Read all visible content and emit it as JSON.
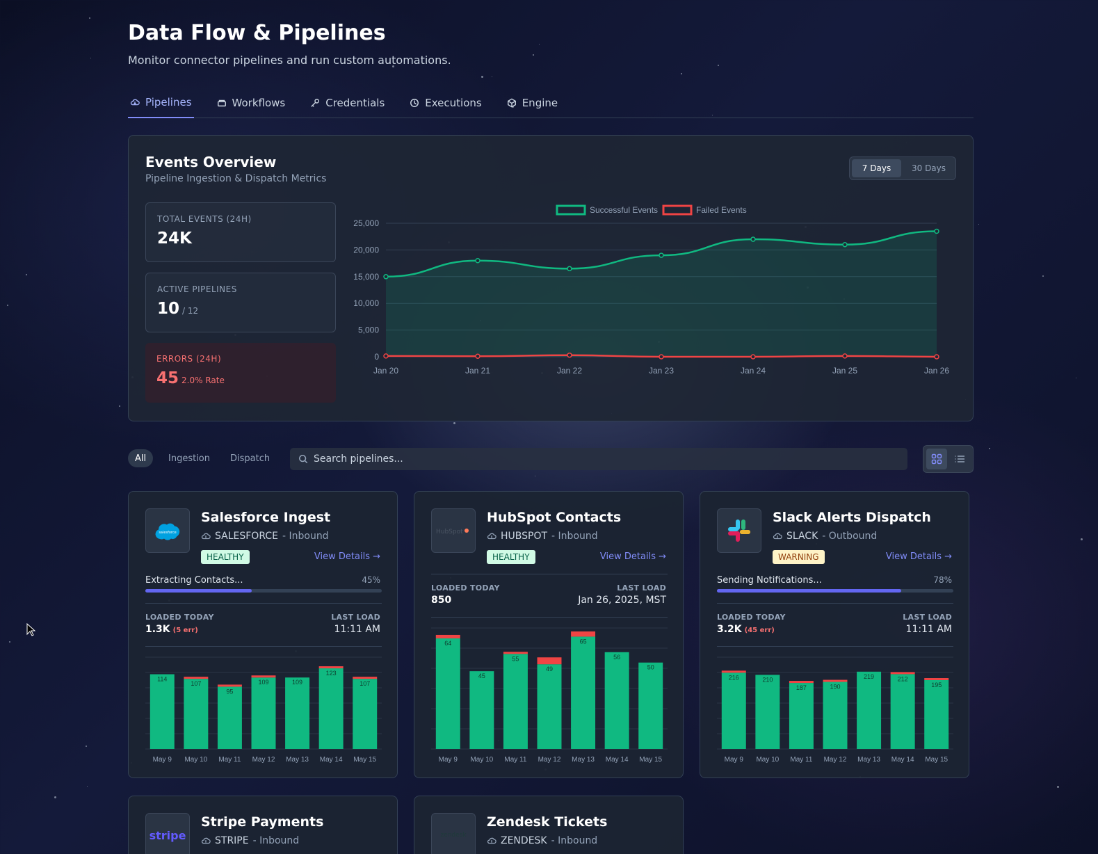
{
  "page": {
    "title": "Data Flow & Pipelines",
    "subtitle": "Monitor connector pipelines and run custom automations."
  },
  "tabs": [
    {
      "label": "Pipelines",
      "icon": "cloud-icon",
      "active": true
    },
    {
      "label": "Workflows",
      "icon": "layers-icon",
      "active": false
    },
    {
      "label": "Credentials",
      "icon": "key-icon",
      "active": false
    },
    {
      "label": "Executions",
      "icon": "clock-icon",
      "active": false
    },
    {
      "label": "Engine",
      "icon": "cube-icon",
      "active": false
    }
  ],
  "overview": {
    "title": "Events Overview",
    "subtitle": "Pipeline Ingestion & Dispatch Metrics",
    "range_options": [
      "7 Days",
      "30 Days"
    ],
    "range_selected": "7 Days",
    "stats": {
      "total": {
        "label": "TOTAL EVENTS (24H)",
        "value": "24K"
      },
      "active": {
        "label": "ACTIVE PIPELINES",
        "value": "10",
        "suffix": "/ 12"
      },
      "errors": {
        "label": "ERRORS (24H)",
        "value": "45",
        "suffix": "2.0% Rate"
      }
    }
  },
  "chart_data": [
    {
      "type": "area",
      "x": [
        "Jan 20",
        "Jan 21",
        "Jan 22",
        "Jan 23",
        "Jan 24",
        "Jan 25",
        "Jan 26"
      ],
      "series": [
        {
          "name": "Successful Events",
          "values": [
            15000,
            18000,
            16500,
            19000,
            22000,
            21000,
            23500
          ],
          "color": "#10b981"
        },
        {
          "name": "Failed Events",
          "values": [
            150,
            100,
            300,
            0,
            0,
            150,
            0
          ],
          "color": "#ef4444"
        }
      ],
      "ylim": [
        0,
        25000
      ],
      "yticks": [
        "0",
        "5,000",
        "10,000",
        "15,000",
        "20,000",
        "25,000"
      ],
      "legend": "top-center",
      "grid": true
    },
    {
      "type": "bar",
      "categories": [
        "May 9",
        "May 10",
        "May 11",
        "May 12",
        "May 13",
        "May 14",
        "May 15"
      ],
      "series": [
        {
          "values": [
            114,
            107,
            95,
            109,
            109,
            123,
            107
          ],
          "color": "#10b981"
        },
        {
          "values": [
            0,
            2,
            3,
            1,
            0,
            2,
            1
          ],
          "color": "#ef4444"
        }
      ],
      "ylim": [
        0,
        140
      ]
    },
    {
      "type": "bar",
      "categories": [
        "May 9",
        "May 10",
        "May 11",
        "May 12",
        "May 13",
        "May 14",
        "May 15"
      ],
      "series": [
        {
          "values": [
            64,
            45,
            55,
            49,
            65,
            56,
            50
          ],
          "color": "#10b981"
        },
        {
          "values": [
            2,
            0,
            1,
            4,
            3,
            0,
            0
          ],
          "color": "#ef4444"
        }
      ],
      "ylim": [
        0,
        70
      ]
    },
    {
      "type": "bar",
      "categories": [
        "May 9",
        "May 10",
        "May 11",
        "May 12",
        "May 13",
        "May 14",
        "May 15"
      ],
      "series": [
        {
          "values": [
            216,
            210,
            187,
            190,
            219,
            212,
            195
          ],
          "color": "#10b981"
        },
        {
          "values": [
            4,
            0,
            1,
            1,
            0,
            2,
            3
          ],
          "color": "#ef4444"
        }
      ],
      "ylim": [
        0,
        260
      ]
    }
  ],
  "filters": {
    "options": [
      "All",
      "Ingestion",
      "Dispatch"
    ],
    "selected": "All",
    "search_placeholder": "Search pipelines..."
  },
  "pipelines": [
    {
      "name": "Salesforce Ingest",
      "source": "SALESFORCE",
      "direction": "- Inbound",
      "status": "HEALTHY",
      "details": "View Details →",
      "progress_label": "Extracting Contacts...",
      "progress_pct": "45%",
      "progress": 0.45,
      "loaded_label": "LOADED TODAY",
      "loaded": "1.3K",
      "loaded_err": "(5 err)",
      "last_label": "LAST LOAD",
      "last": "11:11 AM",
      "logo": "salesforce"
    },
    {
      "name": "HubSpot Contacts",
      "source": "HUBSPOT",
      "direction": "- Inbound",
      "status": "HEALTHY",
      "details": "View Details →",
      "loaded_label": "LOADED TODAY",
      "loaded": "850",
      "loaded_err": "",
      "last_label": "LAST LOAD",
      "last": "Jan 26, 2025, MST",
      "logo": "HubSpot"
    },
    {
      "name": "Slack Alerts Dispatch",
      "source": "SLACK",
      "direction": "- Outbound",
      "status": "WARNING",
      "details": "View Details →",
      "progress_label": "Sending Notifications...",
      "progress_pct": "78%",
      "progress": 0.78,
      "loaded_label": "LOADED TODAY",
      "loaded": "3.2K",
      "loaded_err": "(45 err)",
      "last_label": "LAST LOAD",
      "last": "11:11 AM",
      "logo": "slack"
    },
    {
      "name": "Stripe Payments",
      "source": "STRIPE",
      "direction": "- Inbound",
      "logo": "stripe"
    },
    {
      "name": "Zendesk Tickets",
      "source": "ZENDESK",
      "direction": "- Inbound",
      "logo": "zendesk"
    }
  ]
}
